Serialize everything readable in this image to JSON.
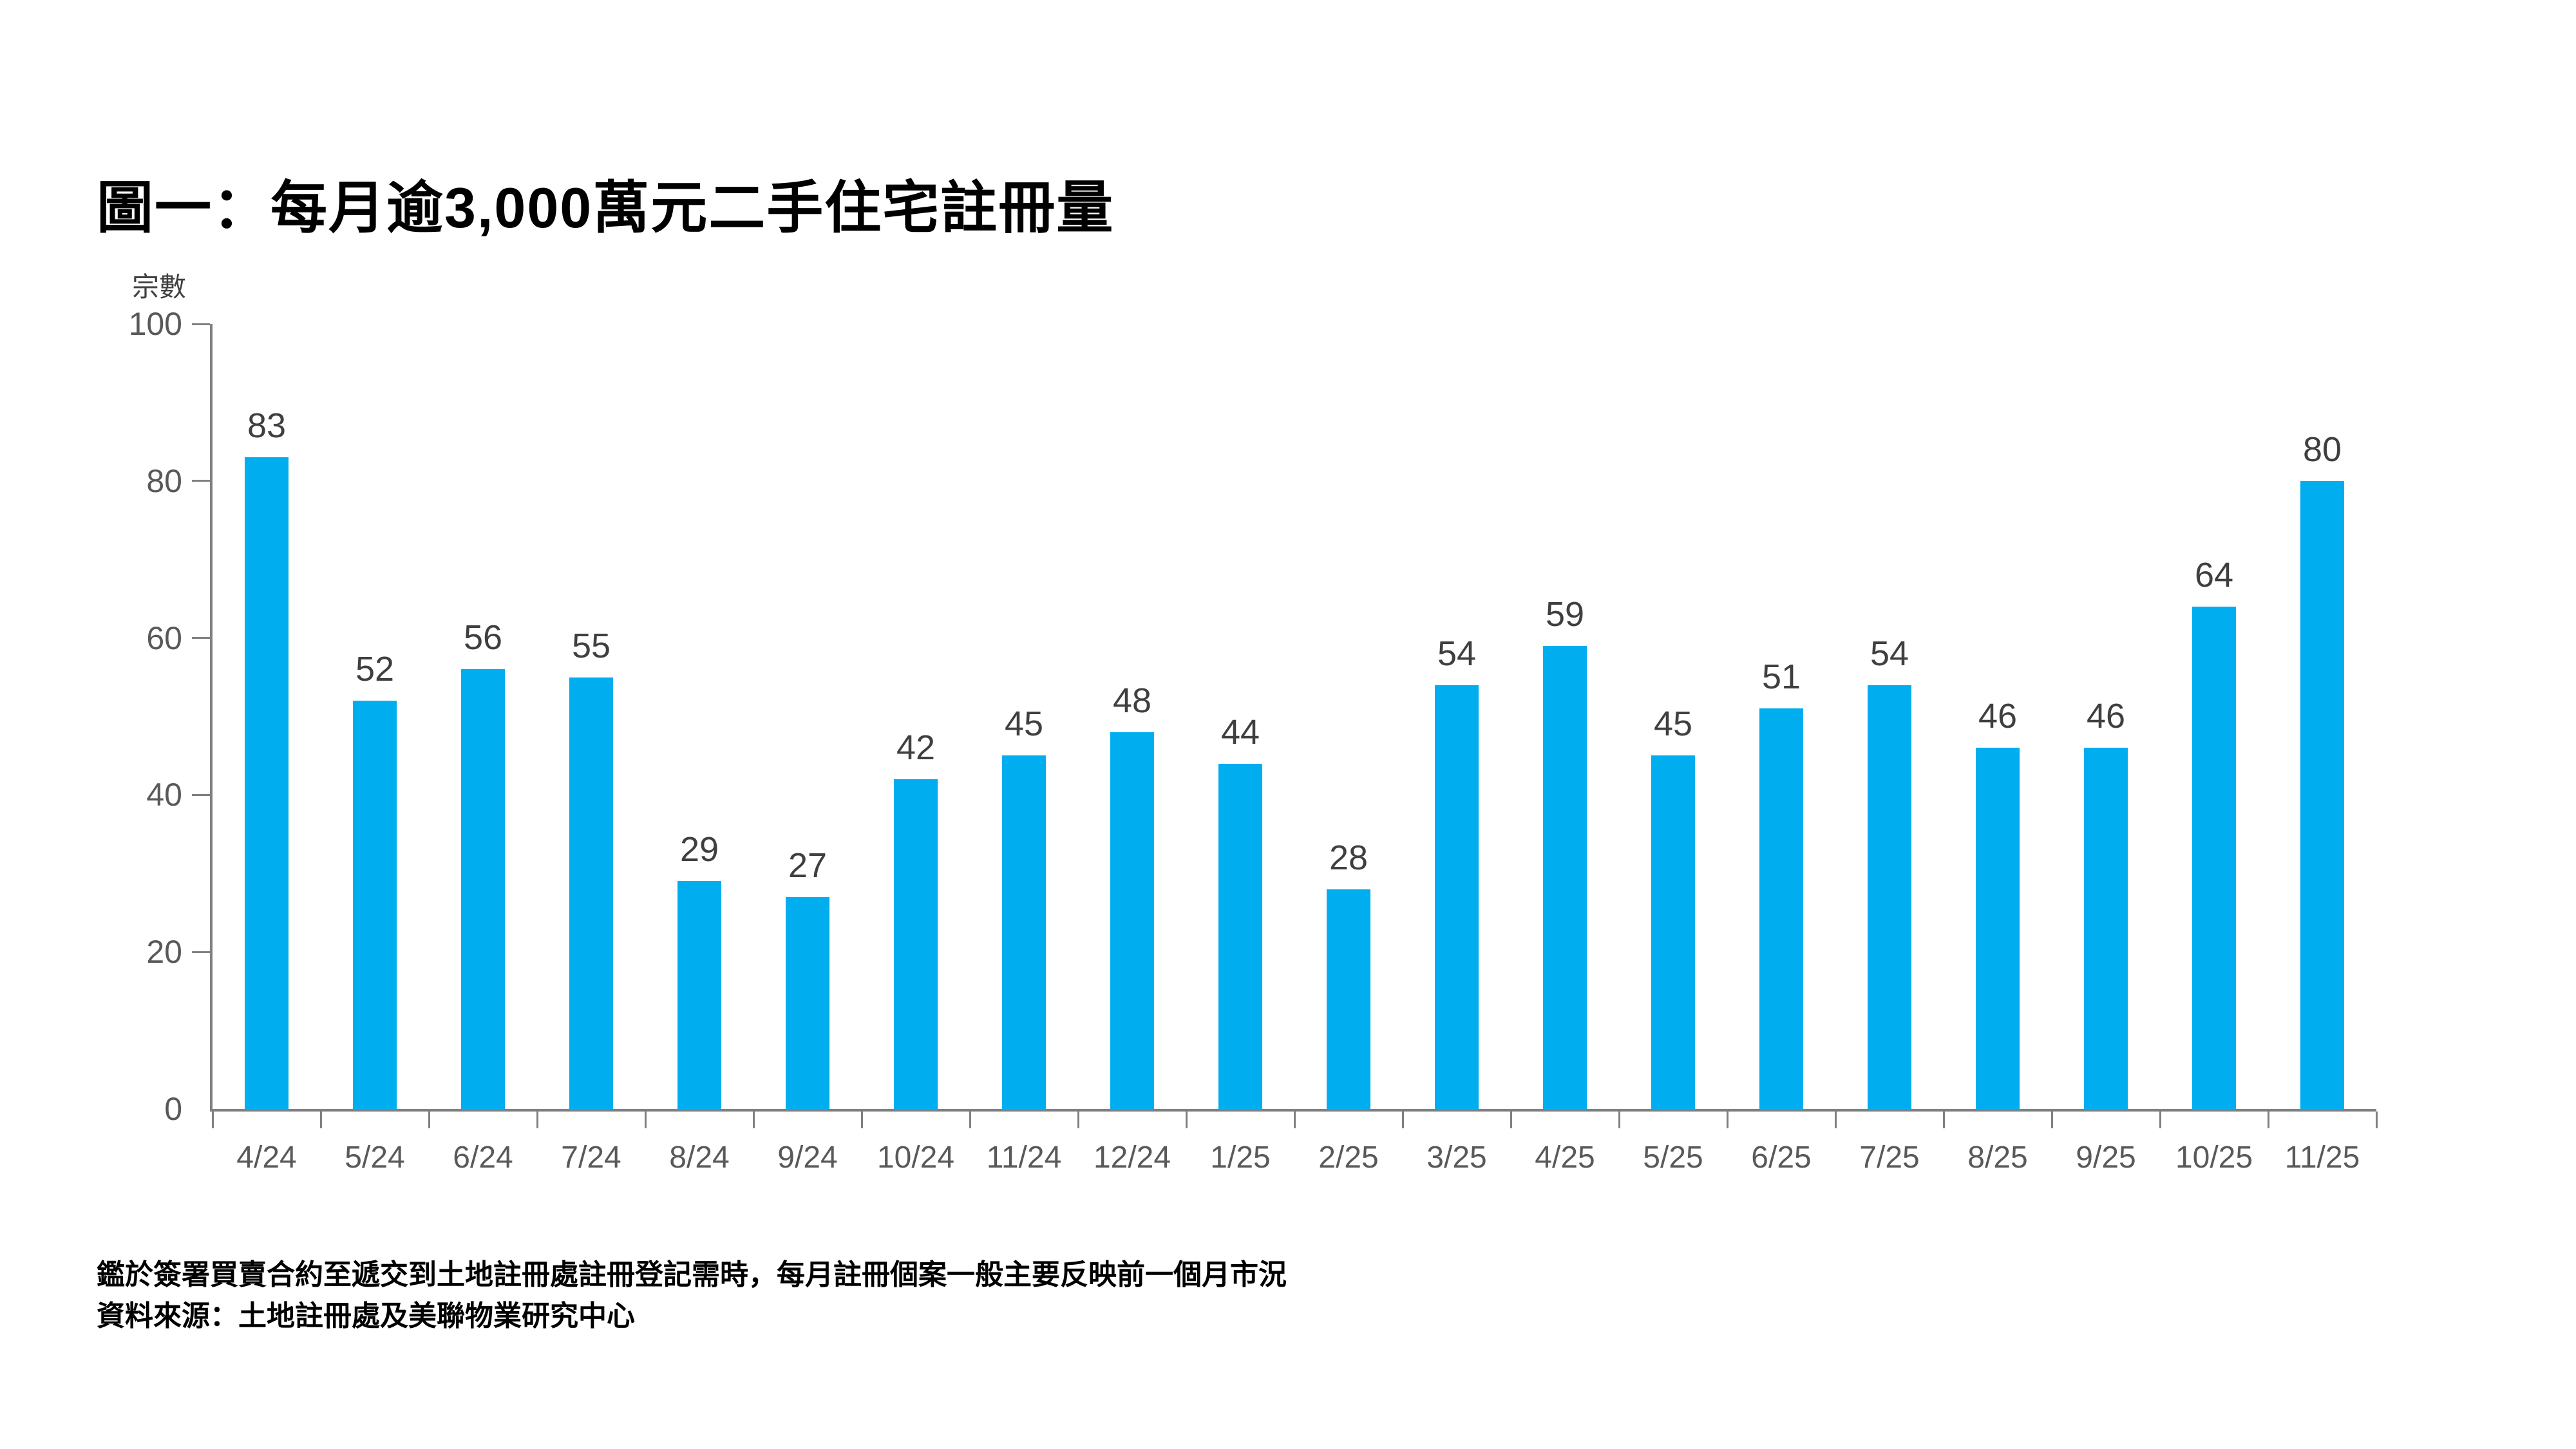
{
  "page": {
    "background_color": "#FFFFFF"
  },
  "chart_data": {
    "type": "bar",
    "title": "圖一：每月逾3,000萬元二手住宅註冊量",
    "ylabel": "宗數",
    "xlabel": "",
    "categories": [
      "4/24",
      "5/24",
      "6/24",
      "7/24",
      "8/24",
      "9/24",
      "10/24",
      "11/24",
      "12/24",
      "1/25",
      "2/25",
      "3/25",
      "4/25",
      "5/25",
      "6/25",
      "7/25",
      "8/25",
      "9/25",
      "10/25",
      "11/25"
    ],
    "values": [
      83,
      52,
      56,
      55,
      29,
      27,
      42,
      45,
      48,
      44,
      28,
      54,
      59,
      45,
      51,
      54,
      46,
      46,
      64,
      80
    ],
    "ylim": [
      0,
      100
    ],
    "ytick_step": 20,
    "grid": false,
    "legend_position": "none",
    "data_labels_shown": true,
    "bar_color": "#00AEEF",
    "axis_color": "#808080",
    "tick_label_color": "#595959",
    "value_label_color": "#3F3F3F",
    "title_color": "#000000"
  },
  "footnotes": [
    "鑑於簽署買賣合約至遞交到土地註冊處註冊登記需時，每月註冊個案一般主要反映前一個月市況",
    "資料來源：土地註冊處及美聯物業研究中心"
  ]
}
